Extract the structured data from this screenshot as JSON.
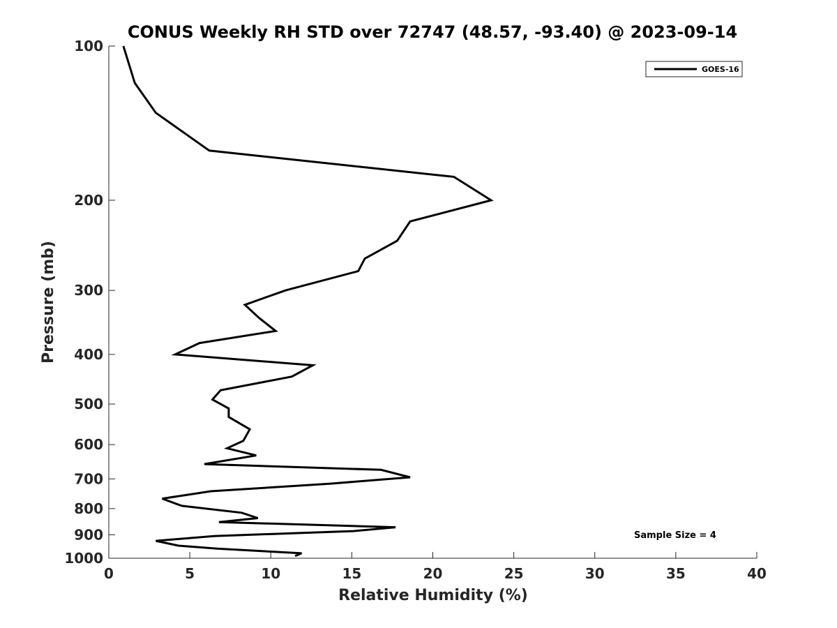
{
  "chart_data": {
    "type": "line",
    "title": "CONUS Weekly RH STD over 72747 (48.57, -93.40) @ 2023-09-14",
    "xlabel": "Relative Humidity (%)",
    "ylabel": "Pressure (mb)",
    "xlim": [
      0,
      40
    ],
    "ylim": [
      100,
      1000
    ],
    "yscale": "log",
    "yreverse": true,
    "grid": false,
    "xticks": [
      0,
      5,
      10,
      15,
      20,
      25,
      30,
      35,
      40
    ],
    "xtick_labels": [
      "0",
      "5",
      "10",
      "15",
      "20",
      "25",
      "30",
      "35",
      "40"
    ],
    "yticks": [
      100,
      200,
      300,
      400,
      500,
      600,
      700,
      800,
      900,
      1000
    ],
    "ytick_labels": [
      "100",
      "200",
      "300",
      "400",
      "500",
      "600",
      "700",
      "800",
      "900",
      "1000"
    ],
    "legend": {
      "position": "top-right",
      "entries": [
        "GOES-16"
      ]
    },
    "annotation": "Sample Size = 4",
    "color": "#000000",
    "series": [
      {
        "name": "GOES-16",
        "points": [
          [
            0.9,
            100
          ],
          [
            1.6,
            118
          ],
          [
            2.9,
            135
          ],
          [
            6.2,
            160
          ],
          [
            21.3,
            180
          ],
          [
            23.6,
            200
          ],
          [
            18.6,
            220
          ],
          [
            17.8,
            240
          ],
          [
            15.8,
            260
          ],
          [
            15.4,
            275
          ],
          [
            10.9,
            300
          ],
          [
            8.4,
            320
          ],
          [
            9.3,
            340
          ],
          [
            10.3,
            360
          ],
          [
            5.6,
            380
          ],
          [
            4.1,
            400
          ],
          [
            12.6,
            420
          ],
          [
            11.3,
            442
          ],
          [
            6.9,
            470
          ],
          [
            6.4,
            490
          ],
          [
            7.4,
            510
          ],
          [
            7.4,
            530
          ],
          [
            8.7,
            560
          ],
          [
            8.3,
            590
          ],
          [
            7.3,
            610
          ],
          [
            9.1,
            630
          ],
          [
            5.9,
            655
          ],
          [
            16.8,
            672
          ],
          [
            18.6,
            695
          ],
          [
            13.7,
            715
          ],
          [
            6.3,
            740
          ],
          [
            3.3,
            765
          ],
          [
            4.5,
            790
          ],
          [
            8.2,
            815
          ],
          [
            9.2,
            835
          ],
          [
            6.8,
            850
          ],
          [
            17.7,
            870
          ],
          [
            15.1,
            885
          ],
          [
            6.5,
            905
          ],
          [
            2.9,
            925
          ],
          [
            4.3,
            945
          ],
          [
            6.7,
            958
          ],
          [
            11.9,
            978
          ],
          [
            11.5,
            990
          ]
        ]
      }
    ]
  }
}
